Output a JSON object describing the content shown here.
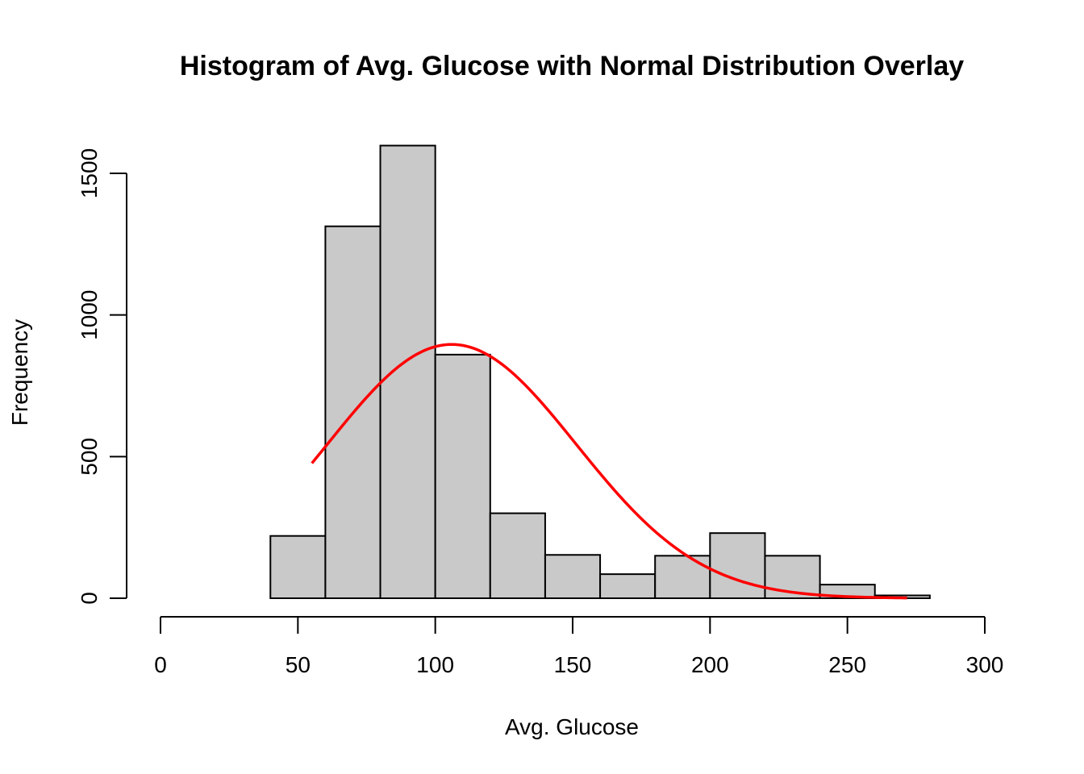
{
  "chart_data": {
    "type": "bar",
    "title": "Histogram of Avg. Glucose with Normal Distribution Overlay",
    "xlabel": "Avg. Glucose",
    "ylabel": "Frequency",
    "xlim": [
      0,
      300
    ],
    "ylim": [
      0,
      1600
    ],
    "x_ticks": [
      0,
      50,
      100,
      150,
      200,
      250,
      300
    ],
    "y_ticks": [
      0,
      500,
      1000,
      1500
    ],
    "bins": [
      {
        "start": 40,
        "end": 60,
        "count": 220
      },
      {
        "start": 60,
        "end": 80,
        "count": 1313
      },
      {
        "start": 80,
        "end": 100,
        "count": 1598
      },
      {
        "start": 100,
        "end": 120,
        "count": 860
      },
      {
        "start": 120,
        "end": 140,
        "count": 300
      },
      {
        "start": 140,
        "end": 160,
        "count": 153
      },
      {
        "start": 160,
        "end": 180,
        "count": 85
      },
      {
        "start": 180,
        "end": 200,
        "count": 150
      },
      {
        "start": 200,
        "end": 220,
        "count": 230
      },
      {
        "start": 220,
        "end": 240,
        "count": 150
      },
      {
        "start": 240,
        "end": 260,
        "count": 48
      },
      {
        "start": 260,
        "end": 280,
        "count": 10
      }
    ],
    "bar_fill": "#c9c9c9",
    "overlay": {
      "name": "Normal Distribution",
      "type": "line",
      "color": "#ff0000",
      "mean": 106,
      "sd": 45.3,
      "peak": 896,
      "x_range": [
        55.1,
        271.7
      ]
    }
  }
}
